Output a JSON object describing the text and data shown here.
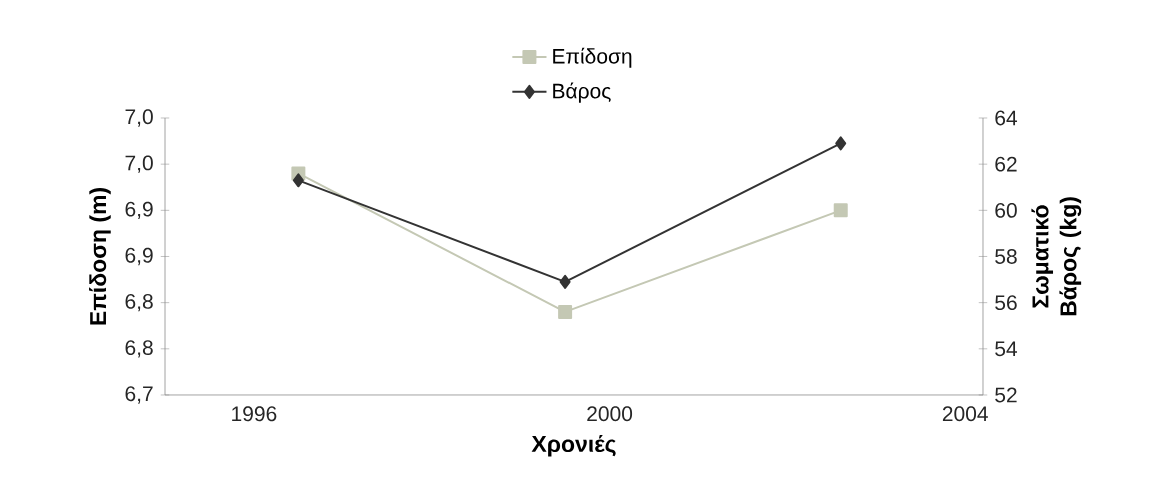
{
  "chart_data": {
    "type": "line",
    "xlabel": "Χρονιές",
    "ylabel": "Επίδοση (m)",
    "y2label": "Σωματικό Βάρος (kg)",
    "x": [
      1996.5,
      1999.5,
      2002.6
    ],
    "series": [
      {
        "name": "Επίδοση",
        "color": "#c4c8b4",
        "marker": "square",
        "values": [
          6.94,
          6.79,
          6.9
        ]
      },
      {
        "name": "Βάρος",
        "color": "#333333",
        "marker": "diamond",
        "axis": "y2",
        "values": [
          61.3,
          56.9,
          62.9
        ]
      }
    ],
    "xlim": [
      1995,
      2004.2
    ],
    "xticks": [
      1996,
      2000,
      2004
    ],
    "ylim": [
      6.7,
      7.0
    ],
    "yticks": [
      {
        "value": 6.7,
        "label": "6,7"
      },
      {
        "value": 6.75,
        "label": "6,8"
      },
      {
        "value": 6.8,
        "label": "6,8"
      },
      {
        "value": 6.85,
        "label": "6,9"
      },
      {
        "value": 6.9,
        "label": "6,9"
      },
      {
        "value": 6.95,
        "label": "7,0"
      },
      {
        "value": 7.0,
        "label": "7,0"
      }
    ],
    "y2lim": [
      52,
      64
    ],
    "y2ticks": [
      52,
      54,
      56,
      58,
      60,
      62,
      64
    ],
    "legend": "top",
    "grid": false,
    "line_style": "solid"
  }
}
